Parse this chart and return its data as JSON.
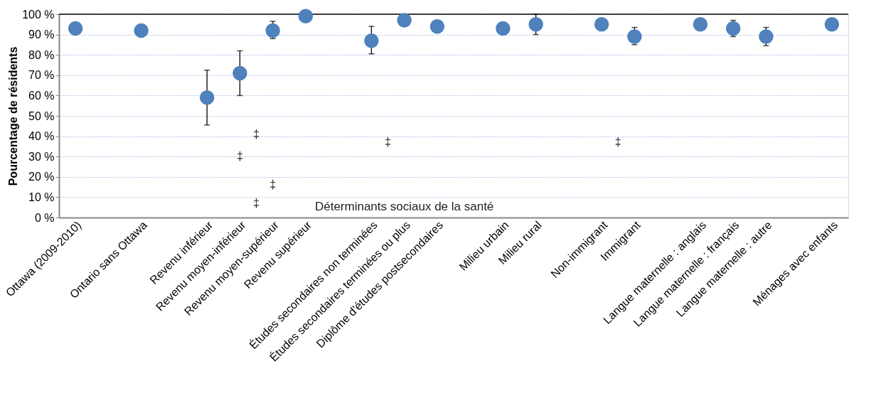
{
  "chart_data": {
    "type": "scatter",
    "ylabel": "Pourcentage de résidents",
    "xlabel": "Déterminants sociaux de la santé",
    "categories": [
      "Ottawa (2009-2010)",
      null,
      "Ontario sans Ottawa",
      null,
      "Revenu inférieur",
      "Revenu moyen-inférieur",
      "Revenu moyen-supérieur",
      "Revenu supérieur",
      null,
      "Études secondaires non terminées",
      "Études secondaires terminées ou plus",
      "Diplôme d'études postsecondaires",
      null,
      "Milieu urbain",
      "Milieu rural",
      null,
      "Non-immigrant",
      "Immigrant",
      null,
      "Langue maternelle : anglais",
      "Langue maternelle : français",
      "Langue maternelle : autre",
      null,
      "Ménages avec enfants"
    ],
    "series": [
      {
        "color": "#4f81bd",
        "values": [
          93,
          null,
          92,
          null,
          59,
          71,
          92,
          99,
          null,
          87,
          97,
          94,
          null,
          93,
          95,
          null,
          95,
          89,
          null,
          95,
          93,
          89,
          null,
          95
        ],
        "errors": [
          null,
          null,
          null,
          null,
          [
            45.5,
            72.5
          ],
          [
            60,
            82
          ],
          [
            88,
            96.5
          ],
          null,
          null,
          [
            80.5,
            94
          ],
          null,
          null,
          null,
          null,
          [
            90,
            100
          ],
          null,
          null,
          [
            85,
            93.5
          ],
          null,
          null,
          [
            89,
            97
          ],
          [
            84.5,
            93.5
          ],
          null,
          null
        ]
      }
    ],
    "ylim": [
      0,
      100
    ],
    "yticks": [
      {
        "value": 0,
        "label": "0 %"
      },
      {
        "value": 10,
        "label": "10 %"
      },
      {
        "value": 20,
        "label": "20 %"
      },
      {
        "value": 30,
        "label": "30 %"
      },
      {
        "value": 40,
        "label": "40 %"
      },
      {
        "value": 50,
        "label": "50 %"
      },
      {
        "value": 60,
        "label": "60 %"
      },
      {
        "value": 70,
        "label": "70 %"
      },
      {
        "value": 80,
        "label": "80 %"
      },
      {
        "value": 90,
        "label": "90 %"
      },
      {
        "value": 100,
        "label": "100 %"
      }
    ],
    "annotations": [
      "‡",
      "‡",
      "‡",
      "‡",
      "‡",
      "‡"
    ],
    "grid": "y",
    "marker": "circle"
  }
}
